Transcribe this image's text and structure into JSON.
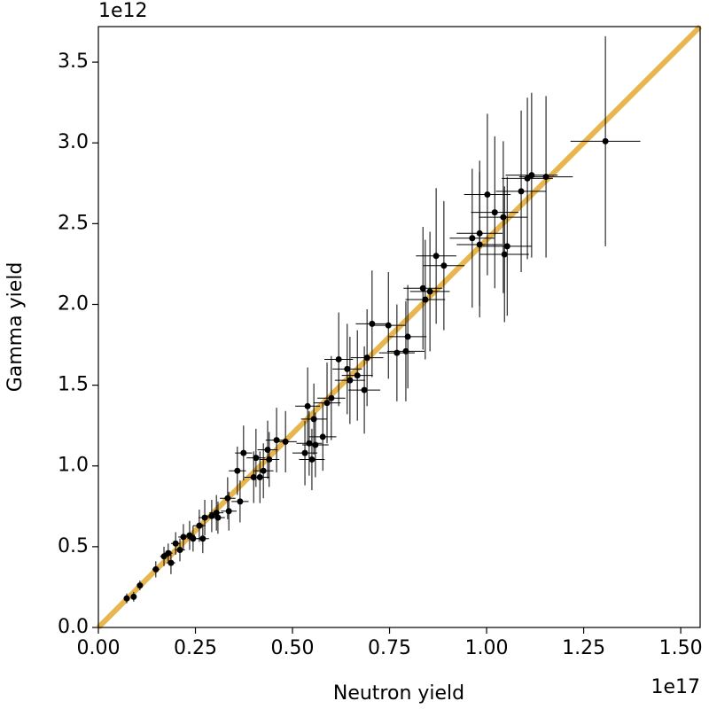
{
  "chart_data": {
    "type": "scatter",
    "xlabel": "Neutron yield",
    "ylabel": "Gamma yield",
    "x_offset_label": "1e17",
    "y_offset_label": "1e12",
    "xlim": [
      0,
      1.55
    ],
    "ylim": [
      0,
      3.72
    ],
    "xticks": [
      {
        "value": 0,
        "label": "0.00"
      },
      0.25,
      {
        "value": 0.5,
        "label": "0.50"
      },
      0.75,
      {
        "value": 1,
        "label": "1.00"
      },
      1.25,
      {
        "value": 1.5,
        "label": "1.50"
      }
    ],
    "yticks": [
      {
        "value": 0,
        "label": "0.0"
      },
      0.5,
      {
        "value": 1,
        "label": "1.0"
      },
      1.5,
      {
        "value": 2,
        "label": "2.0"
      },
      2.5,
      {
        "value": 3,
        "label": "3.0"
      },
      3.5
    ],
    "fit_line": {
      "x": [
        0,
        1.55
      ],
      "y": [
        0,
        3.72
      ],
      "color": "#e8b64f"
    },
    "series": [
      {
        "color": "#000000",
        "x": [
          0.073,
          0.091,
          0.107,
          0.148,
          0.169,
          0.18,
          0.187,
          0.199,
          0.21,
          0.219,
          0.235,
          0.244,
          0.26,
          0.269,
          0.274,
          0.292,
          0.304,
          0.308,
          0.333,
          0.336,
          0.358,
          0.365,
          0.374,
          0.4,
          0.406,
          0.416,
          0.425,
          0.436,
          0.44,
          0.459,
          0.482,
          0.532,
          0.539,
          0.543,
          0.55,
          0.555,
          0.559,
          0.578,
          0.589,
          0.6,
          0.619,
          0.641,
          0.648,
          0.667,
          0.685,
          0.692,
          0.705,
          0.747,
          0.769,
          0.792,
          0.797,
          0.836,
          0.842,
          0.854,
          0.87,
          0.89,
          0.963,
          0.982,
          0.982,
          1.002,
          1.021,
          1.043,
          1.046,
          1.053,
          1.089,
          1.105,
          1.116,
          1.153,
          1.306
        ],
        "y": [
          0.18,
          0.19,
          0.26,
          0.36,
          0.44,
          0.46,
          0.4,
          0.52,
          0.48,
          0.56,
          0.57,
          0.55,
          0.63,
          0.55,
          0.68,
          0.69,
          0.71,
          0.68,
          0.8,
          0.72,
          0.97,
          0.78,
          1.08,
          0.93,
          1.05,
          0.93,
          0.97,
          1.1,
          1.04,
          1.16,
          1.15,
          1.08,
          1.37,
          1.14,
          1.04,
          1.29,
          1.13,
          1.18,
          1.39,
          1.42,
          1.66,
          1.6,
          1.53,
          1.56,
          1.47,
          1.67,
          1.88,
          1.87,
          1.7,
          1.71,
          1.8,
          2.1,
          2.03,
          2.08,
          2.3,
          2.24,
          2.41,
          2.44,
          2.37,
          2.68,
          2.57,
          2.54,
          2.31,
          2.36,
          2.7,
          2.78,
          2.8,
          2.79,
          3.01
        ],
        "xerr": [
          0.005,
          0.006,
          0.007,
          0.009,
          0.01,
          0.011,
          0.011,
          0.012,
          0.013,
          0.013,
          0.014,
          0.015,
          0.016,
          0.016,
          0.016,
          0.018,
          0.018,
          0.018,
          0.02,
          0.02,
          0.022,
          0.022,
          0.022,
          0.024,
          0.024,
          0.025,
          0.026,
          0.026,
          0.026,
          0.028,
          0.029,
          0.032,
          0.032,
          0.033,
          0.033,
          0.033,
          0.034,
          0.035,
          0.035,
          0.036,
          0.037,
          0.038,
          0.039,
          0.04,
          0.041,
          0.042,
          0.042,
          0.045,
          0.046,
          0.048,
          0.048,
          0.05,
          0.051,
          0.051,
          0.052,
          0.053,
          0.058,
          0.059,
          0.059,
          0.06,
          0.061,
          0.063,
          0.063,
          0.063,
          0.065,
          0.066,
          0.067,
          0.069,
          0.09
        ],
        "yerr": [
          0.03,
          0.03,
          0.03,
          0.05,
          0.06,
          0.06,
          0.07,
          0.07,
          0.07,
          0.08,
          0.09,
          0.08,
          0.1,
          0.09,
          0.11,
          0.1,
          0.11,
          0.1,
          0.13,
          0.12,
          0.15,
          0.13,
          0.17,
          0.16,
          0.18,
          0.16,
          0.17,
          0.18,
          0.17,
          0.2,
          0.19,
          0.2,
          0.24,
          0.2,
          0.19,
          0.22,
          0.2,
          0.21,
          0.25,
          0.26,
          0.29,
          0.28,
          0.27,
          0.28,
          0.27,
          0.3,
          0.33,
          0.33,
          0.3,
          0.31,
          0.32,
          0.38,
          0.37,
          0.37,
          0.42,
          0.4,
          0.43,
          0.45,
          0.45,
          0.5,
          0.47,
          0.47,
          0.42,
          0.43,
          0.5,
          0.5,
          0.51,
          0.5,
          0.65
        ]
      }
    ]
  }
}
